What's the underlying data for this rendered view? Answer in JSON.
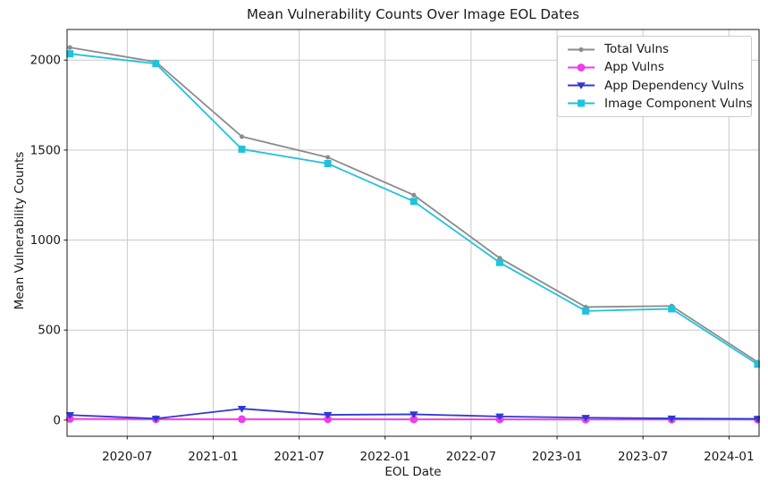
{
  "chart_data": {
    "type": "line",
    "title": "Mean Vulnerability Counts Over Image EOL Dates",
    "xlabel": "EOL Date",
    "ylabel": "Mean Vulnerability Counts",
    "grid": true,
    "legend_position": "upper right",
    "x": [
      "2020-03",
      "2020-09",
      "2021-03",
      "2021-09",
      "2022-03",
      "2022-09",
      "2023-03",
      "2023-09",
      "2024-03"
    ],
    "x_months": [
      2,
      8,
      14,
      20,
      26,
      32,
      38,
      44,
      50
    ],
    "x_tick_labels": [
      "2020-07",
      "2021-01",
      "2021-07",
      "2022-01",
      "2022-07",
      "2023-01",
      "2023-07",
      "2024-01"
    ],
    "x_tick_months": [
      6,
      12,
      18,
      24,
      30,
      36,
      42,
      48
    ],
    "xlim_months": [
      1.8,
      50.1
    ],
    "y_ticks": [
      0,
      500,
      1000,
      1500,
      2000
    ],
    "ylim": [
      -90,
      2170
    ],
    "series": [
      {
        "name": "Total Vulns",
        "color": "#8c8c8c",
        "marker": "dot",
        "values": [
          2070,
          1990,
          1575,
          1460,
          1250,
          900,
          628,
          634,
          322
        ]
      },
      {
        "name": "App Vulns",
        "color": "#f03bee",
        "marker": "circle",
        "values": [
          7,
          5,
          5,
          5,
          4,
          4,
          3,
          3,
          3
        ]
      },
      {
        "name": "App Dependency Vulns",
        "color": "#3038d0",
        "marker": "triangle-down",
        "values": [
          28,
          8,
          63,
          29,
          32,
          20,
          13,
          9,
          7
        ]
      },
      {
        "name": "Image Component Vulns",
        "color": "#20c2dc",
        "marker": "square",
        "values": [
          2035,
          1980,
          1505,
          1425,
          1215,
          875,
          606,
          618,
          310
        ]
      }
    ]
  }
}
